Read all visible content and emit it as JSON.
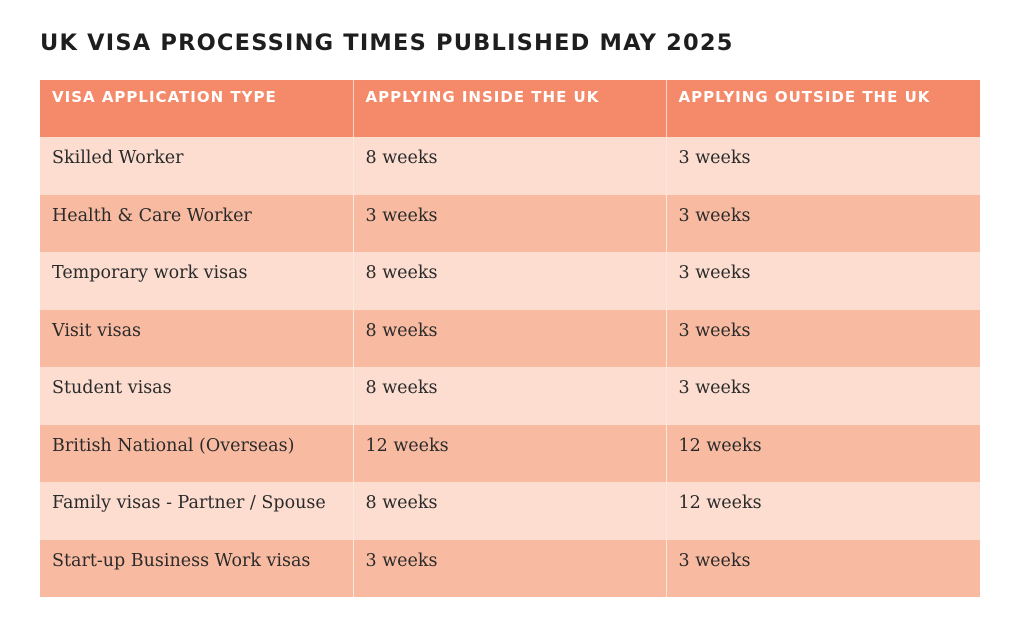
{
  "title": "UK VISA PROCESSING TIMES PUBLISHED MAY 2025",
  "table": {
    "headers": [
      "VISA APPLICATION TYPE",
      "APPLYING INSIDE THE UK",
      "APPLYING OUTSIDE THE UK"
    ],
    "rows": [
      [
        "Skilled Worker",
        "8 weeks",
        "3 weeks"
      ],
      [
        "Health & Care Worker",
        "3 weeks",
        "3 weeks"
      ],
      [
        "Temporary work visas",
        "8 weeks",
        "3 weeks"
      ],
      [
        "Visit visas",
        "8 weeks",
        "3 weeks"
      ],
      [
        "Student visas",
        "8 weeks",
        "3 weeks"
      ],
      [
        "British National (Overseas)",
        "12 weeks",
        "12 weeks"
      ],
      [
        "Family visas - Partner / Spouse",
        "8 weeks",
        "12 weeks"
      ],
      [
        "Start-up Business Work visas",
        "3 weeks",
        "3  weeks"
      ]
    ]
  },
  "colors": {
    "header_bg": "#f58a6a",
    "row_light": "#fcddd0",
    "row_dark": "#f8bba2",
    "title_text": "#1e1e1e"
  }
}
